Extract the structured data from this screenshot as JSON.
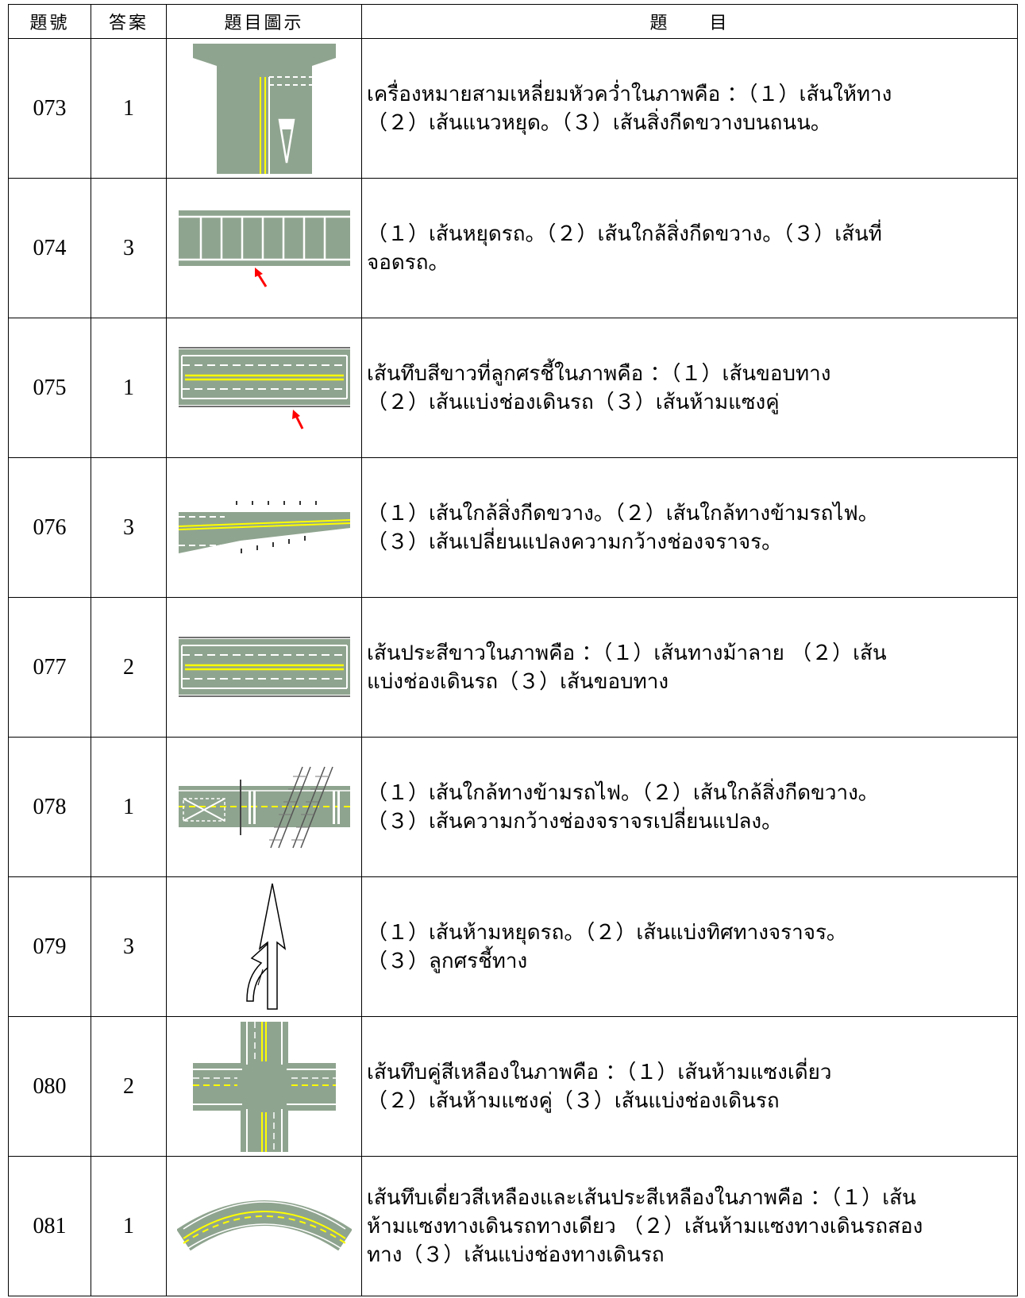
{
  "header": {
    "num": "題號",
    "ans": "答案",
    "pic": "題目圖示",
    "q": "題　　目"
  },
  "rows": [
    {
      "num": "073",
      "ans": "1",
      "icon": "inverted-triangle-road-marking",
      "q": "เครื่องหมายสามเหลี่ยมหัวคว่ำในภาพคือ ：（１）เส้นให้ทาง\n（２）เส้นแนวหยุด。（３）เส้นสิ่งกีดขวางบนถนน。"
    },
    {
      "num": "074",
      "ans": "3",
      "icon": "parking-bay-lines",
      "q": "（１）เส้นหยุดรถ。（２）เส้นใกล้สิ่งกีดขวาง。（３）เส้นที่\nจอดรถ。"
    },
    {
      "num": "075",
      "ans": "1",
      "icon": "road-edge-line",
      "q": "เส้นทึบสีขาวที่ลูกศรชี้ในภาพคือ ：（１）เส้นขอบทาง\n（２）เส้นแบ่งช่องเดินรถ（３）เส้นห้ามแซงคู่"
    },
    {
      "num": "076",
      "ans": "3",
      "icon": "lane-width-transition",
      "q": "（１）เส้นใกล้สิ่งกีดขวาง。（２）เส้นใกล้ทางข้ามรถไฟ。\n（３）เส้นเปลี่ยนแปลงความกว้างช่องจราจร。"
    },
    {
      "num": "077",
      "ans": "2",
      "icon": "lane-dashed-lines",
      "q": "เส้นประสีขาวในภาพคือ ：（１）เส้นทางม้าลาย （２）เส้น\nแบ่งช่องเดินรถ（３）เส้นขอบทาง"
    },
    {
      "num": "078",
      "ans": "1",
      "icon": "railway-crossing-marking",
      "q": "（１）เส้นใกล้ทางข้ามรถไฟ。（２）เส้นใกล้สิ่งกีดขวาง。\n（３）เส้นความกว้างช่องจราจรเปลี่ยนแปลง。"
    },
    {
      "num": "079",
      "ans": "3",
      "icon": "direction-arrow",
      "q": "（１）เส้นห้ามหยุดรถ。（２）เส้นแบ่งทิศทางจราจร。\n（３）ลูกศรชี้ทาง"
    },
    {
      "num": "080",
      "ans": "2",
      "icon": "intersection-double-yellow",
      "q": "เส้นทึบคู่สีเหลืองในภาพคือ ：（１）เส้นห้ามแซงเดี่ยว\n（２）เส้นห้ามแซงคู่（３）เส้นแบ่งช่องเดินรถ"
    },
    {
      "num": "081",
      "ans": "1",
      "icon": "curved-road-yellow-lines",
      "q": "เส้นทึบเดี่ยวสีเหลืองและเส้นประสีเหลืองในภาพคือ ：（１）เส้น\nห้ามแซงทางเดินรถทางเดียว （２）เส้นห้ามแซงทางเดินรถสอง\nทาง（３）เส้นแบ่งช่องทางเดินรถ"
    }
  ],
  "colors": {
    "road": "#8fa48f",
    "yellow": "#ffff00",
    "marker": "#ff0000"
  }
}
